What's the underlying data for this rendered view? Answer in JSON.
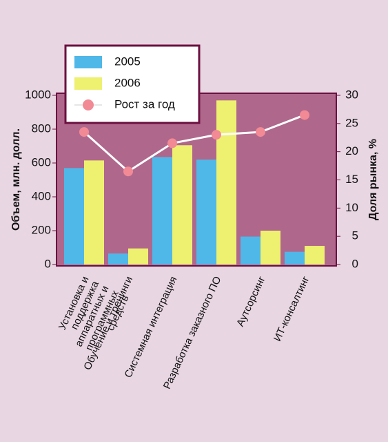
{
  "chart_data": {
    "type": "bar-line",
    "categories": [
      "Установка и поддержка\nаппаратных и\nпрограммных средств",
      "Обучение и тренинги",
      "Системная интеграция",
      "Разработка заказного ПО",
      "Аутсорсинг",
      "ИТ-консалтинг"
    ],
    "series": [
      {
        "name": "2005",
        "color": "#4fb8e8",
        "values": [
          570,
          65,
          635,
          620,
          165,
          75
        ]
      },
      {
        "name": "2006",
        "color": "#eef070",
        "values": [
          615,
          95,
          705,
          970,
          200,
          110
        ]
      },
      {
        "name": "Рост за год",
        "color": "#f28a96",
        "axis": "y2",
        "values": [
          23.5,
          16.5,
          21.5,
          23,
          23.5,
          26.5
        ]
      }
    ],
    "ylabel": "Объем, млн. долл.",
    "y2label": "Доля рынка, %",
    "ylim": [
      0,
      1000
    ],
    "yticks": [
      0,
      200,
      400,
      600,
      800,
      1000
    ],
    "y2lim": [
      0,
      30
    ],
    "y2ticks": [
      0,
      5,
      10,
      15,
      20,
      25,
      30
    ]
  }
}
